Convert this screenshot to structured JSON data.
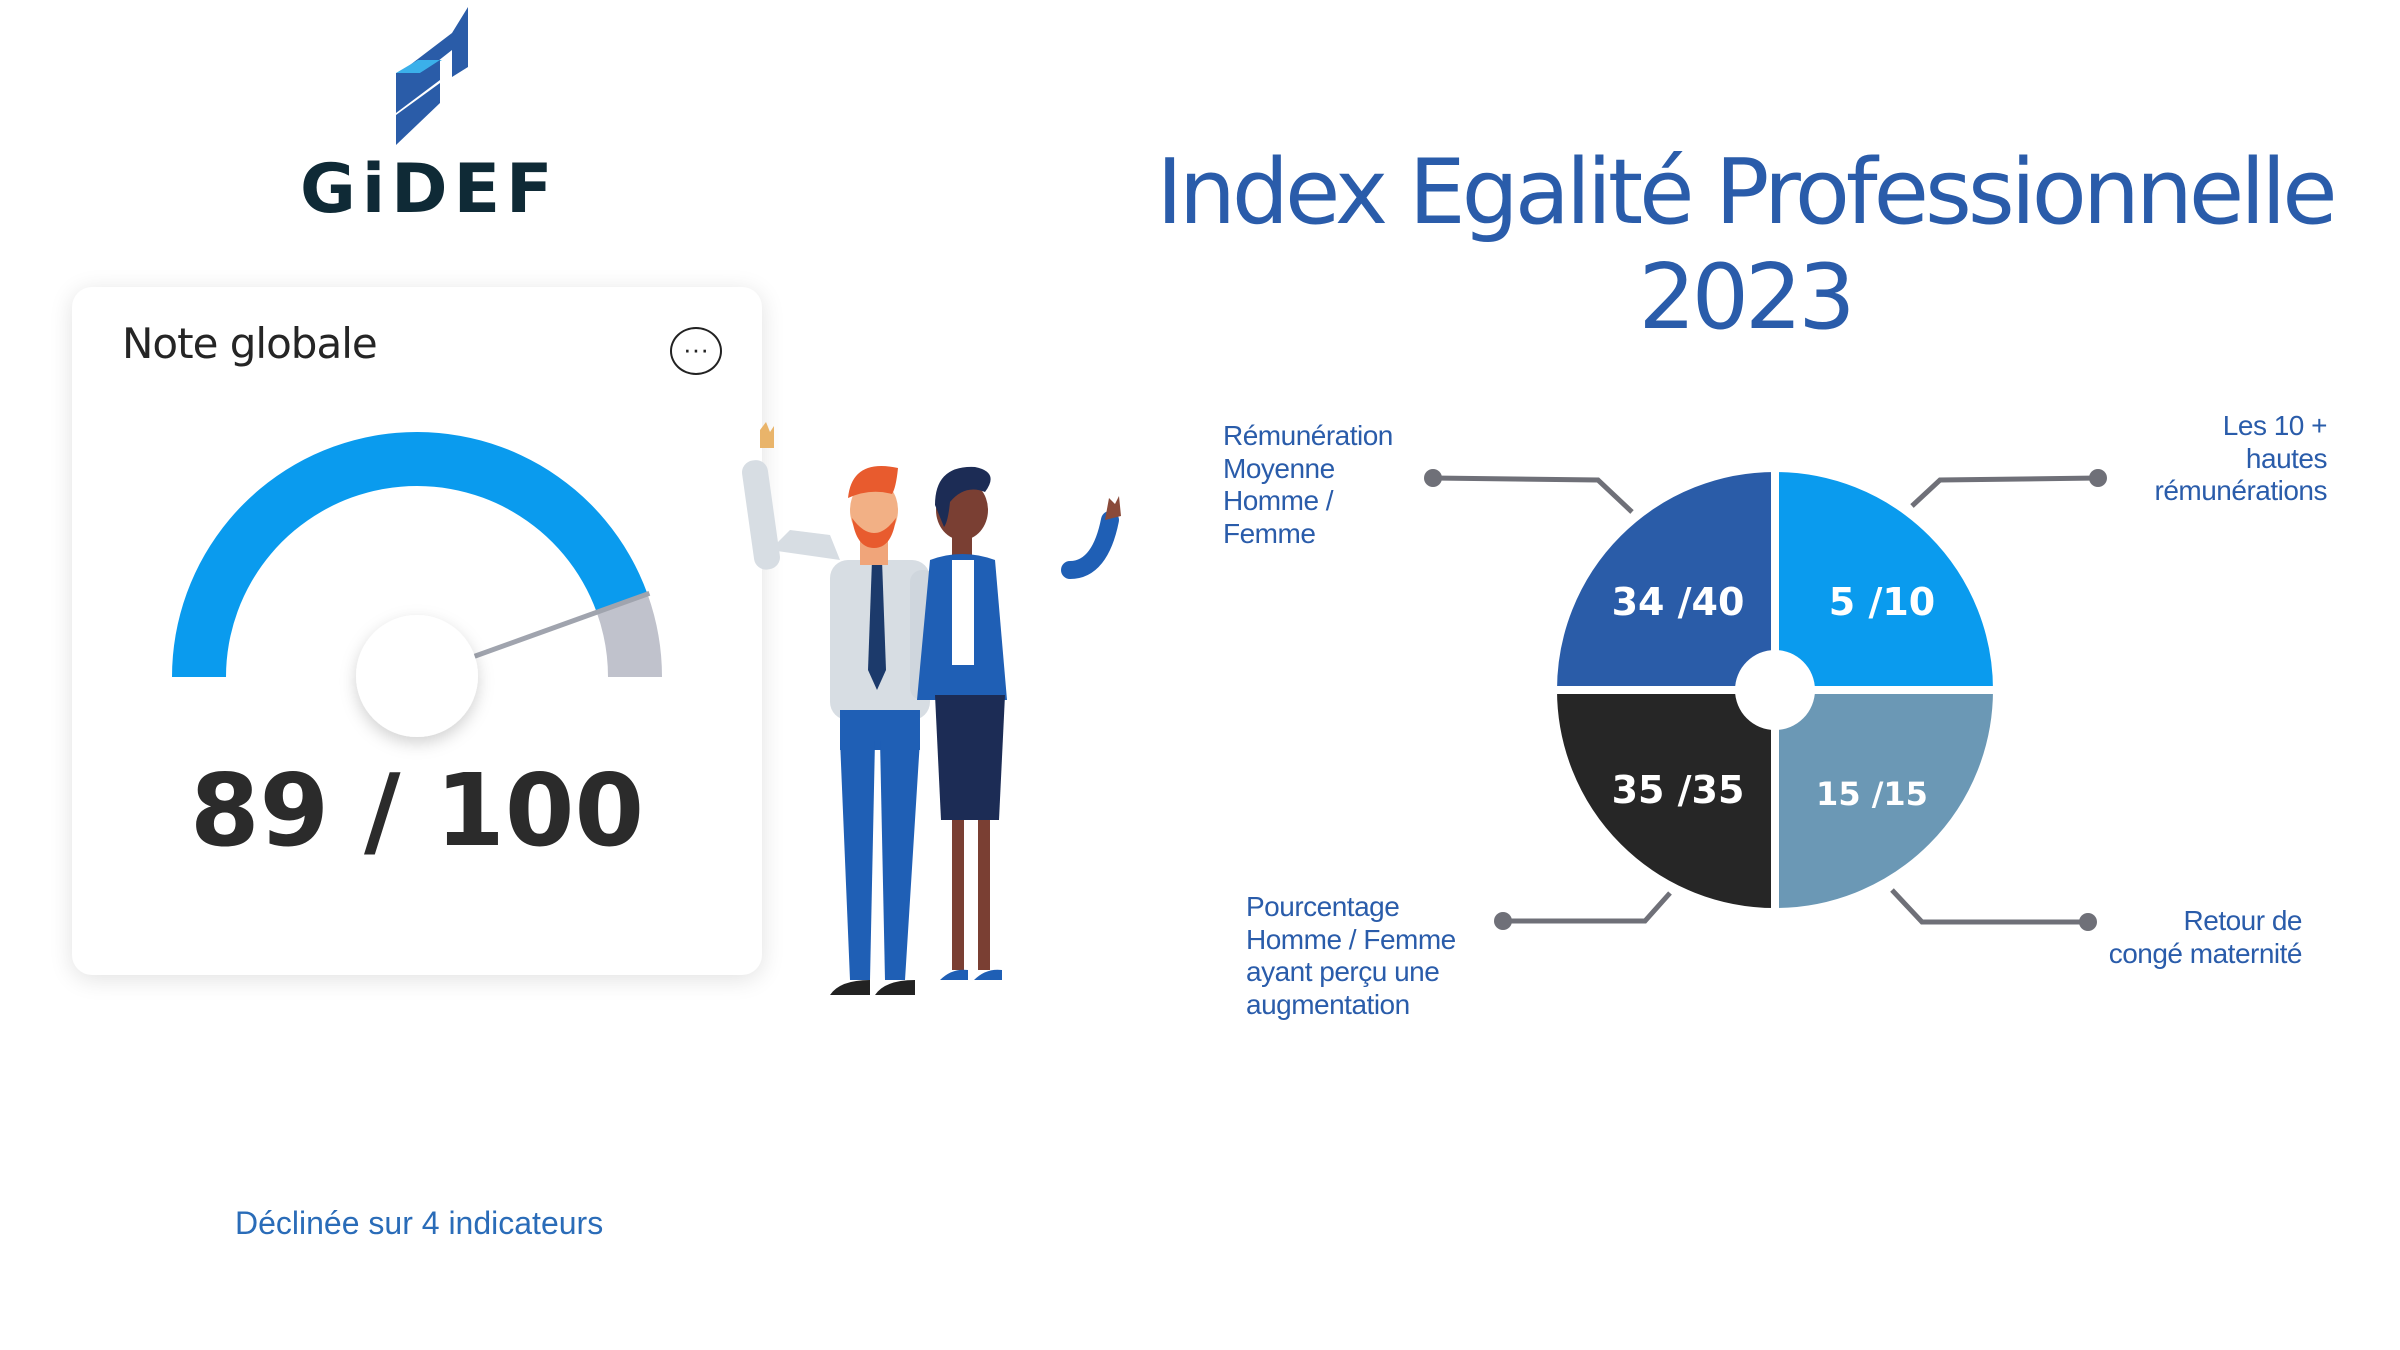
{
  "logo": {
    "text": "GiDEF",
    "colors": [
      "#2a5ca8",
      "#3bb0ea"
    ]
  },
  "card": {
    "title": "Note globale",
    "more_icon": "ellipsis-icon",
    "more_label": "···",
    "score": 89,
    "max": 100,
    "score_label": "89 / 100",
    "gauge_colors": {
      "fill": "#0a9bee",
      "rest": "#c0c2cc",
      "needle": "#a0a4ae"
    }
  },
  "title": {
    "line1": "Index Egalité Professionnelle",
    "line2": "2023"
  },
  "chart_data": {
    "type": "pie",
    "segments": [
      {
        "label": "Rémunération Moyenne Homme / Femme",
        "value_label": "34 /40",
        "score": 34,
        "max": 40,
        "color": "#2a5ca8"
      },
      {
        "label": "Les 10 + hautes rémunérations",
        "value_label": "5 /10",
        "score": 5,
        "max": 10,
        "color": "#0a9bee"
      },
      {
        "label": "Retour de congé maternité",
        "value_label": "15 /15",
        "score": 15,
        "max": 15,
        "color": "#6b98b5"
      },
      {
        "label": "Pourcentage Homme / Femme ayant perçu une augmentation",
        "value_label": "35 /35",
        "score": 35,
        "max": 35,
        "color": "#262626"
      }
    ]
  },
  "labels": {
    "tl": [
      "Rémunération",
      "Moyenne",
      "Homme /",
      "Femme"
    ],
    "tr": [
      "Les 10 +",
      "hautes",
      "rémunérations"
    ],
    "bl": [
      "Pourcentage",
      "Homme / Femme",
      "ayant perçu une",
      "augmentation"
    ],
    "br": [
      "Retour de",
      "congé maternité"
    ]
  },
  "footer": "Déclinée sur 4 indicateurs"
}
